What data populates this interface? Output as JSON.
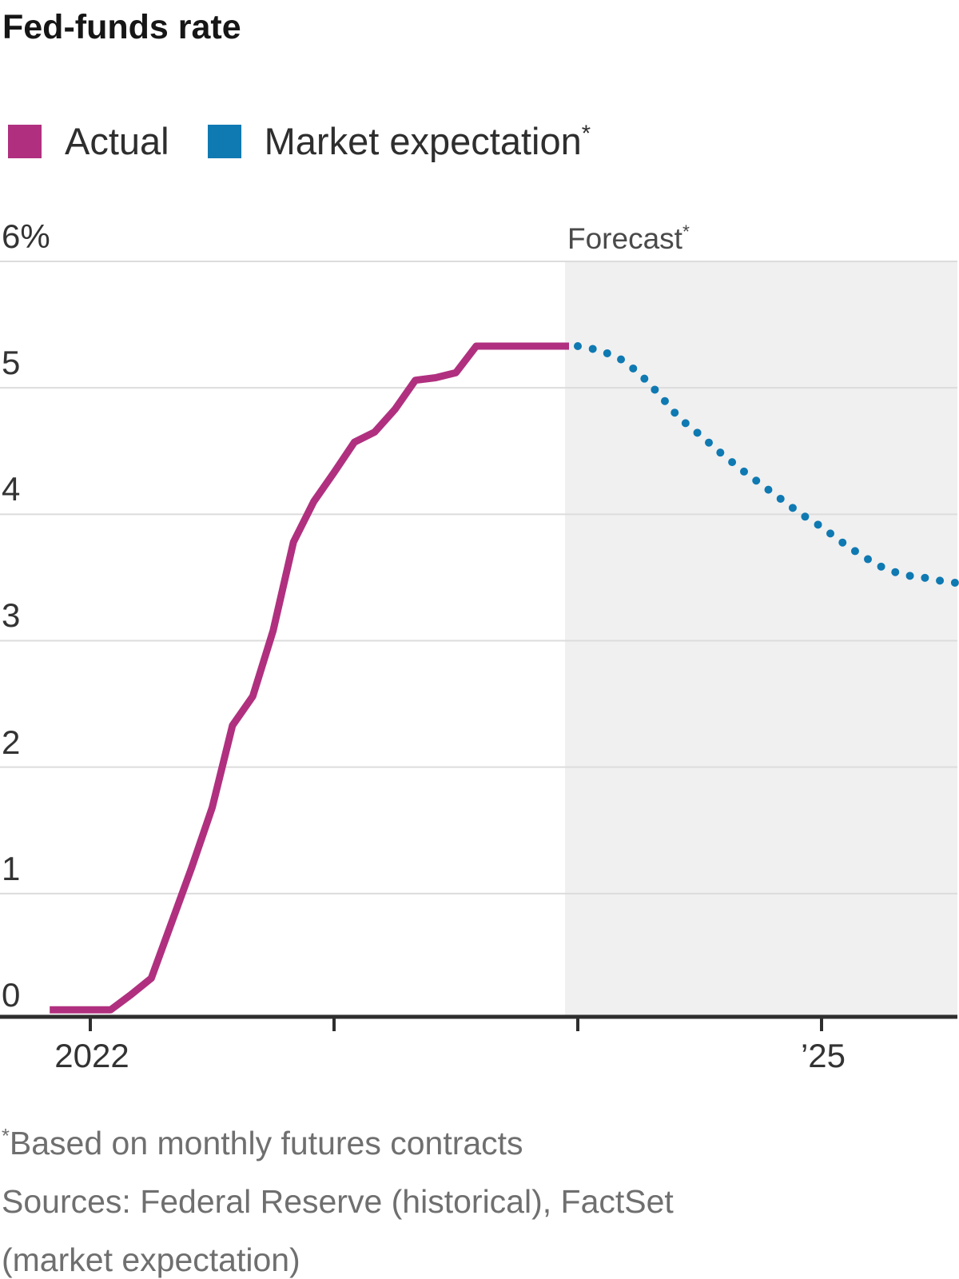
{
  "title": "Fed-funds rate",
  "legend": {
    "items": [
      {
        "label": "Actual",
        "suffix": "",
        "color": "#b0307f"
      },
      {
        "label": "Market expectation",
        "suffix": "*",
        "color": "#0f79b2"
      }
    ]
  },
  "annotations": {
    "forecast_label": "Forecast",
    "forecast_suffix": "*"
  },
  "axes": {
    "y_ticks": [
      "6%",
      "5",
      "4",
      "3",
      "2",
      "1",
      "0"
    ],
    "x_tick_labels": [
      "2022",
      "’25"
    ]
  },
  "chart_data": {
    "type": "line",
    "title": "Fed-funds rate",
    "unit": "percent",
    "ylim": [
      0,
      6
    ],
    "y_gridlines": [
      6,
      5,
      4,
      3,
      2,
      1
    ],
    "grid": true,
    "legend_position": "top-left",
    "x_axis": {
      "start": "2021-11",
      "end": "2025-08",
      "ticks": [
        {
          "month": "2022-01",
          "label": "2022"
        },
        {
          "month": "2023-01",
          "label": ""
        },
        {
          "month": "2024-01",
          "label": ""
        },
        {
          "month": "2025-01",
          "label": "’25"
        }
      ]
    },
    "forecast_region_start": "2023-12",
    "series": [
      {
        "name": "Actual",
        "color": "#b0307f",
        "style": "solid",
        "start": "2021-11",
        "values": [
          0.08,
          0.08,
          0.08,
          0.08,
          0.2,
          0.33,
          0.77,
          1.21,
          1.68,
          2.33,
          2.56,
          3.08,
          3.78,
          4.1,
          4.33,
          4.57,
          4.65,
          4.83,
          5.06,
          5.08,
          5.12,
          5.33,
          5.33,
          5.33,
          5.33,
          5.33
        ]
      },
      {
        "name": "Market expectation",
        "color": "#0f79b2",
        "style": "dotted",
        "start": "2024-01",
        "values": [
          5.33,
          5.3,
          5.24,
          5.12,
          4.95,
          4.76,
          4.63,
          4.49,
          4.36,
          4.24,
          4.12,
          4.0,
          3.9,
          3.78,
          3.67,
          3.58,
          3.52,
          3.5,
          3.47,
          3.45
        ]
      }
    ]
  },
  "footer": {
    "note_sup": "*",
    "note": "Based on monthly futures contracts",
    "sources_line1": "Sources: Federal Reserve (historical), FactSet",
    "sources_line2": "(market expectation)"
  }
}
